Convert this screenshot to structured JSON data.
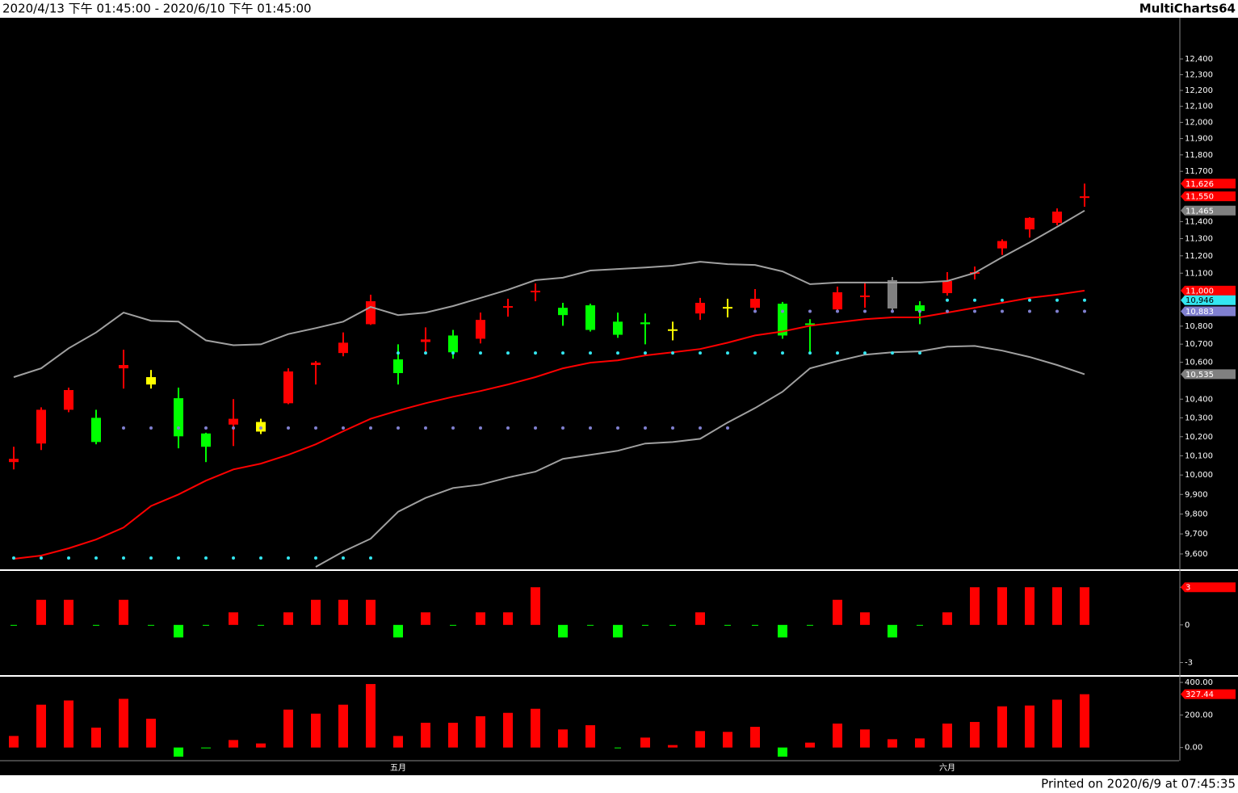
{
  "header": {
    "range": "2020/4/13 下午 01:45:00 - 2020/6/10 下午 01:45:00",
    "app": "MultiCharts64"
  },
  "footer": "Printed on 2020/6/9 at 07:45:35",
  "chart_data": [
    {
      "type": "candlestick",
      "categories": [
        null,
        null,
        null,
        null,
        null,
        null,
        null,
        null,
        null,
        null,
        null,
        null,
        null,
        null,
        "五月",
        null,
        null,
        null,
        null,
        null,
        null,
        null,
        null,
        null,
        null,
        null,
        null,
        null,
        null,
        null,
        null,
        null,
        null,
        null,
        "六月",
        null,
        null,
        null,
        null,
        null
      ],
      "open": [
        10067,
        10164,
        10343,
        10300,
        10567,
        10519,
        10405,
        10217,
        10264,
        10278,
        10378,
        10585,
        10651,
        10811,
        10616,
        10712,
        10748,
        10730,
        10903,
        10991,
        10903,
        10917,
        10825,
        10821,
        10778,
        10871,
        10899,
        10903,
        10926,
        10811,
        10894,
        10959,
        11060,
        10917,
        10986,
        11092,
        11243,
        11354,
        11392,
        11540
      ],
      "high": [
        10147,
        10356,
        10462,
        10343,
        10669,
        10558,
        10462,
        10221,
        10400,
        10295,
        10567,
        10607,
        10765,
        10977,
        10699,
        10793,
        10779,
        10876,
        10954,
        11041,
        10931,
        10926,
        10876,
        10871,
        10825,
        10959,
        10954,
        11009,
        10936,
        10839,
        11023,
        11046,
        11078,
        10940,
        11106,
        11138,
        11296,
        11426,
        11478,
        11626
      ],
      "low": [
        10029,
        10130,
        10330,
        10160,
        10457,
        10457,
        10139,
        10067,
        10151,
        10214,
        10373,
        10479,
        10633,
        10807,
        10479,
        10651,
        10620,
        10704,
        10853,
        10940,
        10802,
        10770,
        10735,
        10699,
        10721,
        10835,
        10849,
        10876,
        10730,
        10646,
        10876,
        10903,
        10876,
        10811,
        10972,
        11064,
        11205,
        11306,
        11378,
        11488
      ],
      "close": [
        10084,
        10343,
        10449,
        10172,
        10585,
        10479,
        10202,
        10147,
        10295,
        10227,
        10550,
        10598,
        10708,
        10940,
        10541,
        10726,
        10655,
        10835,
        10908,
        10995,
        10862,
        10779,
        10752,
        10811,
        10772,
        10931,
        10903,
        10954,
        10748,
        10807,
        10991,
        10968,
        10899,
        10885,
        11055,
        11101,
        11286,
        11422,
        11459,
        11550
      ],
      "candle_colors": [
        "#ff0000",
        "#ff0000",
        "#ff0000",
        "#00ff00",
        "#ff0000",
        "#ffff00",
        "#00ff00",
        "#00ff00",
        "#ff0000",
        "#ffff00",
        "#ff0000",
        "#ff0000",
        "#ff0000",
        "#ff0000",
        "#00ff00",
        "#ff0000",
        "#00ff00",
        "#ff0000",
        "#ff0000",
        "#ff0000",
        "#00ff00",
        "#00ff00",
        "#00ff00",
        "#00ff00",
        "#ffff00",
        "#ff0000",
        "#ffff00",
        "#ff0000",
        "#00ff00",
        "#00ff00",
        "#ff0000",
        "#ff0000",
        "#808080",
        "#00ff00",
        "#ff0000",
        "#ff0000",
        "#ff0000",
        "#ff0000",
        "#ff0000",
        "#ff0000"
      ],
      "series": [
        {
          "style": "line",
          "color": "#a0a0a0",
          "values": [
            10519,
            10567,
            10677,
            10765,
            10876,
            10830,
            10825,
            10721,
            10694,
            10699,
            10756,
            10789,
            10825,
            10908,
            10862,
            10876,
            10913,
            10959,
            11005,
            11060,
            11074,
            11115,
            11124,
            11133,
            11143,
            11166,
            11152,
            11147,
            11110,
            11037,
            11046,
            11046,
            11046,
            11046,
            11055,
            11101,
            11192,
            11278,
            11369,
            11465
          ]
        },
        {
          "style": "line",
          "color": "#ff0000",
          "values": [
            9576,
            9592,
            9628,
            9672,
            9732,
            9841,
            9900,
            9971,
            10029,
            10059,
            10105,
            10160,
            10229,
            10295,
            10339,
            10378,
            10413,
            10444,
            10479,
            10519,
            10567,
            10598,
            10611,
            10638,
            10655,
            10673,
            10708,
            10748,
            10770,
            10802,
            10821,
            10839,
            10849,
            10849,
            10876,
            10903,
            10931,
            10959,
            10977,
            11000
          ]
        },
        {
          "style": "line",
          "color": "#a0a0a0",
          "values": [
            null,
            null,
            null,
            null,
            null,
            null,
            null,
            null,
            null,
            null,
            null,
            9536,
            9612,
            9676,
            9812,
            9882,
            9933,
            9950,
            9987,
            10017,
            10084,
            10105,
            10126,
            10164,
            10172,
            10189,
            10275,
            10352,
            10440,
            10567,
            10607,
            10642,
            10655,
            10660,
            10686,
            10690,
            10664,
            10629,
            10585,
            10535
          ]
        },
        {
          "style": "dots",
          "color": "#33e6f0",
          "values": [
            9580,
            9580,
            9580,
            9580,
            9580,
            9580,
            9580,
            9580,
            9580,
            9580,
            9580,
            9580,
            9580,
            9580,
            10651,
            10651,
            10651,
            10651,
            10651,
            10651,
            10651,
            10651,
            10651,
            10651,
            10651,
            10651,
            10651,
            10651,
            10651,
            10651,
            10651,
            10651,
            10651,
            10651,
            10946,
            10946,
            10946,
            10946,
            10946,
            10946
          ]
        },
        {
          "style": "dots",
          "color": "#8080d0",
          "values": [
            null,
            null,
            null,
            null,
            10246,
            10246,
            10246,
            10246,
            10246,
            10246,
            10246,
            10246,
            10246,
            10246,
            10246,
            10246,
            10246,
            10246,
            10246,
            10246,
            10246,
            10246,
            10246,
            10246,
            10246,
            10246,
            10246,
            10883,
            10883,
            10883,
            10883,
            10883,
            10883,
            10883,
            10883,
            10883,
            10883,
            10883,
            10883,
            10883
          ]
        }
      ],
      "ylim": [
        9524,
        12667
      ],
      "log_scale": true,
      "yticks": [
        {
          "value": 12400,
          "label": "12,400"
        },
        {
          "value": 12300,
          "label": "12,300"
        },
        {
          "value": 12200,
          "label": "12,200"
        },
        {
          "value": 12100,
          "label": "12,100"
        },
        {
          "value": 12000,
          "label": "12,000"
        },
        {
          "value": 11900,
          "label": "11,900"
        },
        {
          "value": 11800,
          "label": "11,800"
        },
        {
          "value": 11700,
          "label": "11,700"
        },
        {
          "value": 11400,
          "label": "11,400"
        },
        {
          "value": 11300,
          "label": "11,300"
        },
        {
          "value": 11200,
          "label": "11,200"
        },
        {
          "value": 11100,
          "label": "11,100"
        },
        {
          "value": 10800,
          "label": "10,800"
        },
        {
          "value": 10700,
          "label": "10,700"
        },
        {
          "value": 10600,
          "label": "10,600"
        },
        {
          "value": 10400,
          "label": "10,400"
        },
        {
          "value": 10300,
          "label": "10,300"
        },
        {
          "value": 10200,
          "label": "10,200"
        },
        {
          "value": 10100,
          "label": "10,100"
        },
        {
          "value": 10000,
          "label": "10,000"
        },
        {
          "value": 9900,
          "label": "9,900"
        },
        {
          "value": 9800,
          "label": "9,800"
        },
        {
          "value": 9700,
          "label": "9,700"
        },
        {
          "value": 9600,
          "label": "9,600"
        }
      ],
      "price_tags": [
        {
          "value": 11626,
          "label": "11,626",
          "color": "#ff0000"
        },
        {
          "value": 11550,
          "label": "11,550",
          "color": "#ff0000"
        },
        {
          "value": 11465,
          "label": "11,465",
          "color": "#808080"
        },
        {
          "value": 11000,
          "label": "11,000",
          "color": "#ff0000"
        },
        {
          "value": 10946,
          "label": "10,946",
          "color": "#33e6f0"
        },
        {
          "value": 10883,
          "label": "10,883",
          "color": "#8080d0"
        },
        {
          "value": 10535,
          "label": "10,535",
          "color": "#808080"
        }
      ]
    },
    {
      "type": "bar",
      "values": [
        0,
        2,
        2,
        0,
        2,
        0,
        -1,
        0,
        1,
        0,
        1,
        2,
        2,
        2,
        -1,
        1,
        0,
        1,
        1,
        3,
        -1,
        0,
        -1,
        0,
        0,
        1,
        0,
        0,
        -1,
        0,
        2,
        1,
        -1,
        0,
        1,
        3,
        3,
        3,
        3,
        3
      ],
      "up_color": "#ff0000",
      "down_color": "#00ff00",
      "ylim": [
        -4.0,
        4.3
      ],
      "yticks": [
        3,
        0,
        -3
      ],
      "price_tags": [
        {
          "value": 3,
          "color": "#ff0000"
        }
      ]
    },
    {
      "type": "bar",
      "values": [
        71,
        263,
        289,
        122,
        299,
        177,
        -56,
        -5,
        46,
        25,
        233,
        208,
        263,
        390,
        71,
        152,
        152,
        192,
        213,
        238,
        111,
        137,
        0,
        61,
        15,
        101,
        96,
        127,
        -56,
        30,
        147,
        111,
        51,
        56,
        147,
        157,
        253,
        258,
        294,
        327.44
      ],
      "up_color": "#ff0000",
      "down_color": "#00ff00",
      "ylim": [
        -81,
        435
      ],
      "yticks": [
        {
          "value": 400,
          "label": "400.00"
        },
        {
          "value": 200,
          "label": "200.00"
        },
        {
          "value": 0,
          "label": "0.00"
        }
      ],
      "price_tags": [
        {
          "value": 327.44,
          "color": "#ff0000"
        }
      ]
    }
  ]
}
